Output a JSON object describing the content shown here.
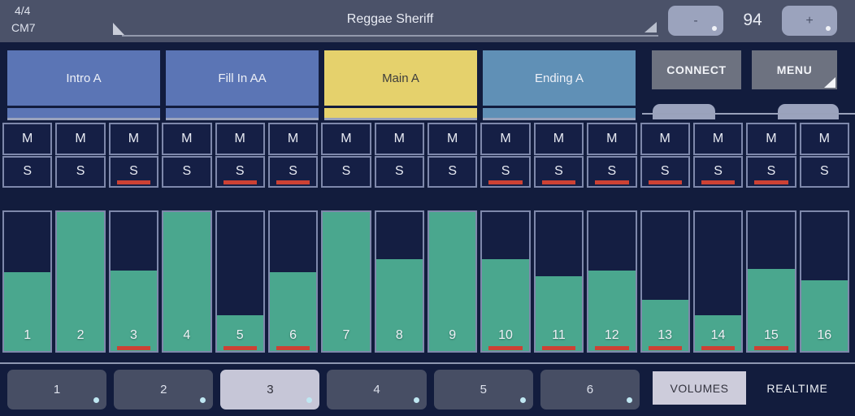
{
  "header": {
    "time_signature": "4/4",
    "chord": "CM7",
    "song_title": "Reggae Sheriff",
    "tempo_value": "94",
    "tempo_decrease_label": "-",
    "tempo_increase_label": "+"
  },
  "style_section": {
    "buttons": [
      {
        "label": "Intro A",
        "bg": "#5b75b5",
        "fg": "#edf0f7"
      },
      {
        "label": "Fill In AA",
        "bg": "#5b75b5",
        "fg": "#edf0f7"
      },
      {
        "label": "Main A",
        "bg": "#e5d16c",
        "fg": "#3d3d3d"
      },
      {
        "label": "Ending A",
        "bg": "#6090b6",
        "fg": "#edf0f7"
      }
    ],
    "connect_label": "CONNECT",
    "menu_label": "MENU"
  },
  "mixer": {
    "mute_label": "M",
    "solo_label": "S",
    "accent_red": "#cd4134",
    "fader_fill_color": "#4aa78e",
    "channels": [
      {
        "num": "1",
        "level": 57,
        "marked": false
      },
      {
        "num": "2",
        "level": 100,
        "marked": false
      },
      {
        "num": "3",
        "level": 58,
        "marked": true
      },
      {
        "num": "4",
        "level": 100,
        "marked": false
      },
      {
        "num": "5",
        "level": 26,
        "marked": true
      },
      {
        "num": "6",
        "level": 57,
        "marked": true
      },
      {
        "num": "7",
        "level": 100,
        "marked": false
      },
      {
        "num": "8",
        "level": 66,
        "marked": false
      },
      {
        "num": "9",
        "level": 100,
        "marked": false
      },
      {
        "num": "10",
        "level": 66,
        "marked": true
      },
      {
        "num": "11",
        "level": 54,
        "marked": true
      },
      {
        "num": "12",
        "level": 58,
        "marked": true
      },
      {
        "num": "13",
        "level": 37,
        "marked": true
      },
      {
        "num": "14",
        "level": 26,
        "marked": true
      },
      {
        "num": "15",
        "level": 59,
        "marked": true
      },
      {
        "num": "16",
        "level": 51,
        "marked": false
      }
    ]
  },
  "footer": {
    "registration_buttons": [
      {
        "label": "1",
        "active": false
      },
      {
        "label": "2",
        "active": false
      },
      {
        "label": "3",
        "active": true
      },
      {
        "label": "4",
        "active": false
      },
      {
        "label": "5",
        "active": false
      },
      {
        "label": "6",
        "active": false
      }
    ],
    "volumes_label": "VOLUMES",
    "realtime_label": "REALTIME"
  }
}
